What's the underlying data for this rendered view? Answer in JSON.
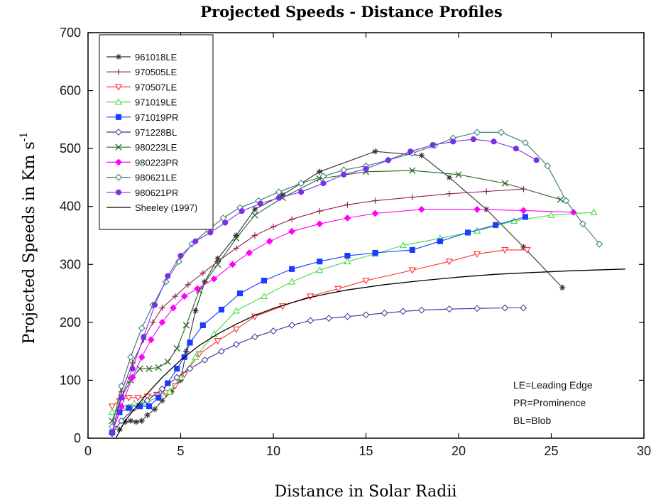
{
  "chart_data": {
    "type": "line",
    "title": "Projected  Speeds -  Distance Profiles",
    "xlabel": "Distance in Solar Radii",
    "ylabel": "Projected Speeds in Km s",
    "ylabel_sup": "-1",
    "xlim": [
      0,
      30
    ],
    "ylim": [
      0,
      700
    ],
    "xticks": [
      0,
      5,
      10,
      15,
      20,
      25,
      30
    ],
    "yticks": [
      0,
      100,
      200,
      300,
      400,
      500,
      600,
      700
    ],
    "legend_position": "top-left",
    "notes": [
      "LE=Leading Edge",
      "PR=Prominence",
      "BL=Blob"
    ],
    "series": [
      {
        "name": "961018LE",
        "color": "#333333",
        "marker": "asterisk",
        "points": [
          [
            1.7,
            15
          ],
          [
            2.0,
            28
          ],
          [
            2.3,
            30
          ],
          [
            2.6,
            28
          ],
          [
            2.9,
            30
          ],
          [
            3.2,
            40
          ],
          [
            3.6,
            50
          ],
          [
            4.0,
            65
          ],
          [
            4.5,
            80
          ],
          [
            5.0,
            100
          ],
          [
            5.3,
            150
          ],
          [
            5.8,
            220
          ],
          [
            6.3,
            270
          ],
          [
            7.0,
            310
          ],
          [
            8.0,
            350
          ],
          [
            9.0,
            395
          ],
          [
            10.5,
            420
          ],
          [
            12.5,
            460
          ],
          [
            15.5,
            495
          ],
          [
            18,
            488
          ],
          [
            19.5,
            450
          ],
          [
            21.5,
            395
          ],
          [
            23.5,
            330
          ],
          [
            25.6,
            260
          ]
        ]
      },
      {
        "name": "970505LE",
        "color": "#8b2252",
        "marker": "plus",
        "points": [
          [
            1.4,
            20
          ],
          [
            1.8,
            80
          ],
          [
            2.4,
            130
          ],
          [
            3.0,
            170
          ],
          [
            3.5,
            200
          ],
          [
            4.0,
            225
          ],
          [
            4.7,
            245
          ],
          [
            5.4,
            265
          ],
          [
            6.2,
            285
          ],
          [
            7.0,
            305
          ],
          [
            8.0,
            328
          ],
          [
            9.0,
            350
          ],
          [
            10,
            365
          ],
          [
            11,
            378
          ],
          [
            12.5,
            392
          ],
          [
            14,
            403
          ],
          [
            15.5,
            410
          ],
          [
            17.5,
            416
          ],
          [
            19.5,
            422
          ],
          [
            21.5,
            426
          ],
          [
            23.5,
            430
          ]
        ]
      },
      {
        "name": "970507LE",
        "color": "#ff3030",
        "marker": "triangle-down",
        "points": [
          [
            1.3,
            55
          ],
          [
            1.7,
            65
          ],
          [
            2.2,
            70
          ],
          [
            2.7,
            70
          ],
          [
            3.2,
            72
          ],
          [
            3.7,
            75
          ],
          [
            4.2,
            78
          ],
          [
            4.7,
            90
          ],
          [
            5.2,
            110
          ],
          [
            6.0,
            145
          ],
          [
            7.0,
            168
          ],
          [
            8.0,
            188
          ],
          [
            9.0,
            210
          ],
          [
            10.5,
            228
          ],
          [
            12,
            245
          ],
          [
            13.5,
            258
          ],
          [
            15,
            272
          ],
          [
            17.5,
            290
          ],
          [
            19.5,
            305
          ],
          [
            21,
            318
          ],
          [
            22.5,
            325
          ],
          [
            23.7,
            325
          ]
        ]
      },
      {
        "name": "971019LE",
        "color": "#44dd44",
        "marker": "triangle-up",
        "points": [
          [
            1.3,
            45
          ],
          [
            1.8,
            55
          ],
          [
            2.5,
            60
          ],
          [
            3.0,
            62
          ],
          [
            3.8,
            70
          ],
          [
            4.4,
            80
          ],
          [
            5.0,
            105
          ],
          [
            5.8,
            140
          ],
          [
            6.8,
            180
          ],
          [
            8.0,
            220
          ],
          [
            9.5,
            245
          ],
          [
            11,
            270
          ],
          [
            12.5,
            290
          ],
          [
            14,
            305
          ],
          [
            15.5,
            318
          ],
          [
            17,
            333
          ],
          [
            19,
            345
          ],
          [
            21,
            358
          ],
          [
            23,
            375
          ],
          [
            25,
            385
          ],
          [
            27.3,
            390
          ]
        ]
      },
      {
        "name": "971019PR",
        "color": "#1a3cff",
        "marker": "square",
        "points": [
          [
            1.3,
            10
          ],
          [
            1.7,
            45
          ],
          [
            2.2,
            52
          ],
          [
            2.8,
            55
          ],
          [
            3.3,
            55
          ],
          [
            3.8,
            70
          ],
          [
            4.3,
            95
          ],
          [
            4.8,
            120
          ],
          [
            5.2,
            140
          ],
          [
            5.5,
            165
          ],
          [
            6.2,
            195
          ],
          [
            7.2,
            222
          ],
          [
            8.2,
            250
          ],
          [
            9.5,
            272
          ],
          [
            11,
            292
          ],
          [
            12.5,
            305
          ],
          [
            14,
            315
          ],
          [
            15.5,
            320
          ],
          [
            17.5,
            325
          ],
          [
            19,
            340
          ],
          [
            20.5,
            355
          ],
          [
            22,
            368
          ],
          [
            23.6,
            382
          ]
        ]
      },
      {
        "name": "971228BL",
        "color": "#333399",
        "marker": "diamond-open",
        "points": [
          [
            1.3,
            8
          ],
          [
            1.8,
            30
          ],
          [
            2.5,
            52
          ],
          [
            3.2,
            65
          ],
          [
            4.0,
            85
          ],
          [
            4.8,
            105
          ],
          [
            5.5,
            120
          ],
          [
            6.3,
            135
          ],
          [
            7.2,
            150
          ],
          [
            8.0,
            162
          ],
          [
            9.0,
            175
          ],
          [
            10,
            185
          ],
          [
            11,
            195
          ],
          [
            12,
            203
          ],
          [
            13,
            207
          ],
          [
            14,
            210
          ],
          [
            15,
            213
          ],
          [
            16,
            216
          ],
          [
            17,
            219
          ],
          [
            18,
            221
          ],
          [
            19.5,
            223
          ],
          [
            21,
            224
          ],
          [
            22.5,
            225
          ],
          [
            23.5,
            225
          ]
        ]
      },
      {
        "name": "980223LE",
        "color": "#226622",
        "marker": "x",
        "points": [
          [
            1.3,
            30
          ],
          [
            1.8,
            70
          ],
          [
            2.3,
            100
          ],
          [
            2.8,
            120
          ],
          [
            3.3,
            120
          ],
          [
            3.8,
            122
          ],
          [
            4.3,
            132
          ],
          [
            4.8,
            155
          ],
          [
            5.3,
            195
          ],
          [
            6.0,
            255
          ],
          [
            7.0,
            300
          ],
          [
            8.0,
            345
          ],
          [
            9.0,
            385
          ],
          [
            10.5,
            415
          ],
          [
            12.5,
            448
          ],
          [
            15,
            460
          ],
          [
            17.5,
            462
          ],
          [
            20,
            455
          ],
          [
            22.5,
            440
          ],
          [
            25.5,
            412
          ]
        ]
      },
      {
        "name": "980223PR",
        "color": "#ff00ff",
        "marker": "diamond",
        "points": [
          [
            1.3,
            10
          ],
          [
            1.8,
            55
          ],
          [
            2.4,
            105
          ],
          [
            2.9,
            140
          ],
          [
            3.4,
            170
          ],
          [
            4.0,
            200
          ],
          [
            4.6,
            225
          ],
          [
            5.2,
            245
          ],
          [
            5.9,
            258
          ],
          [
            6.8,
            275
          ],
          [
            7.8,
            300
          ],
          [
            8.7,
            320
          ],
          [
            9.8,
            340
          ],
          [
            11,
            357
          ],
          [
            12.5,
            370
          ],
          [
            14,
            380
          ],
          [
            15.5,
            388
          ],
          [
            18,
            395
          ],
          [
            21,
            395
          ],
          [
            23.5,
            393
          ],
          [
            26.2,
            390
          ]
        ]
      },
      {
        "name": "980621LE",
        "color": "#337777",
        "marker": "diamond-open",
        "points": [
          [
            1.3,
            20
          ],
          [
            1.8,
            90
          ],
          [
            2.3,
            140
          ],
          [
            2.9,
            190
          ],
          [
            3.5,
            230
          ],
          [
            4.2,
            270
          ],
          [
            4.9,
            305
          ],
          [
            5.6,
            335
          ],
          [
            6.5,
            360
          ],
          [
            7.3,
            380
          ],
          [
            8.2,
            398
          ],
          [
            9.2,
            410
          ],
          [
            10.3,
            425
          ],
          [
            11.5,
            440
          ],
          [
            12.7,
            452
          ],
          [
            13.8,
            463
          ],
          [
            15,
            470
          ],
          [
            16.2,
            480
          ],
          [
            17.5,
            492
          ],
          [
            18.7,
            505
          ],
          [
            19.7,
            518
          ],
          [
            21,
            528
          ],
          [
            22.3,
            528
          ],
          [
            23.6,
            510
          ],
          [
            24.8,
            470
          ],
          [
            25.8,
            410
          ],
          [
            26.7,
            370
          ],
          [
            27.6,
            335
          ]
        ]
      },
      {
        "name": "980621PR",
        "color": "#7a2fe8",
        "marker": "circle",
        "points": [
          [
            1.3,
            10
          ],
          [
            1.8,
            70
          ],
          [
            2.4,
            120
          ],
          [
            3.0,
            175
          ],
          [
            3.6,
            230
          ],
          [
            4.3,
            280
          ],
          [
            5.0,
            315
          ],
          [
            5.8,
            340
          ],
          [
            6.6,
            355
          ],
          [
            7.4,
            372
          ],
          [
            8.3,
            392
          ],
          [
            9.3,
            405
          ],
          [
            10.3,
            415
          ],
          [
            11.5,
            425
          ],
          [
            12.7,
            440
          ],
          [
            13.8,
            455
          ],
          [
            15,
            465
          ],
          [
            16.2,
            480
          ],
          [
            17.4,
            495
          ],
          [
            18.6,
            506
          ],
          [
            19.7,
            512
          ],
          [
            20.8,
            516
          ],
          [
            21.9,
            512
          ],
          [
            23.1,
            500
          ],
          [
            24.2,
            480
          ]
        ]
      },
      {
        "name": "Sheeley (1997)",
        "color": "#000000",
        "marker": "none",
        "points": [
          [
            1.5,
            0
          ],
          [
            2.0,
            30
          ],
          [
            3.0,
            70
          ],
          [
            4.0,
            105
          ],
          [
            5.0,
            135
          ],
          [
            6.0,
            160
          ],
          [
            7.0,
            180
          ],
          [
            8.0,
            197
          ],
          [
            9.0,
            212
          ],
          [
            10,
            224
          ],
          [
            11,
            234
          ],
          [
            12,
            243
          ],
          [
            13,
            250
          ],
          [
            14,
            256
          ],
          [
            16,
            265
          ],
          [
            18,
            272
          ],
          [
            20,
            278
          ],
          [
            22,
            283
          ],
          [
            24,
            286
          ],
          [
            26,
            289
          ],
          [
            29,
            292
          ]
        ]
      }
    ]
  }
}
